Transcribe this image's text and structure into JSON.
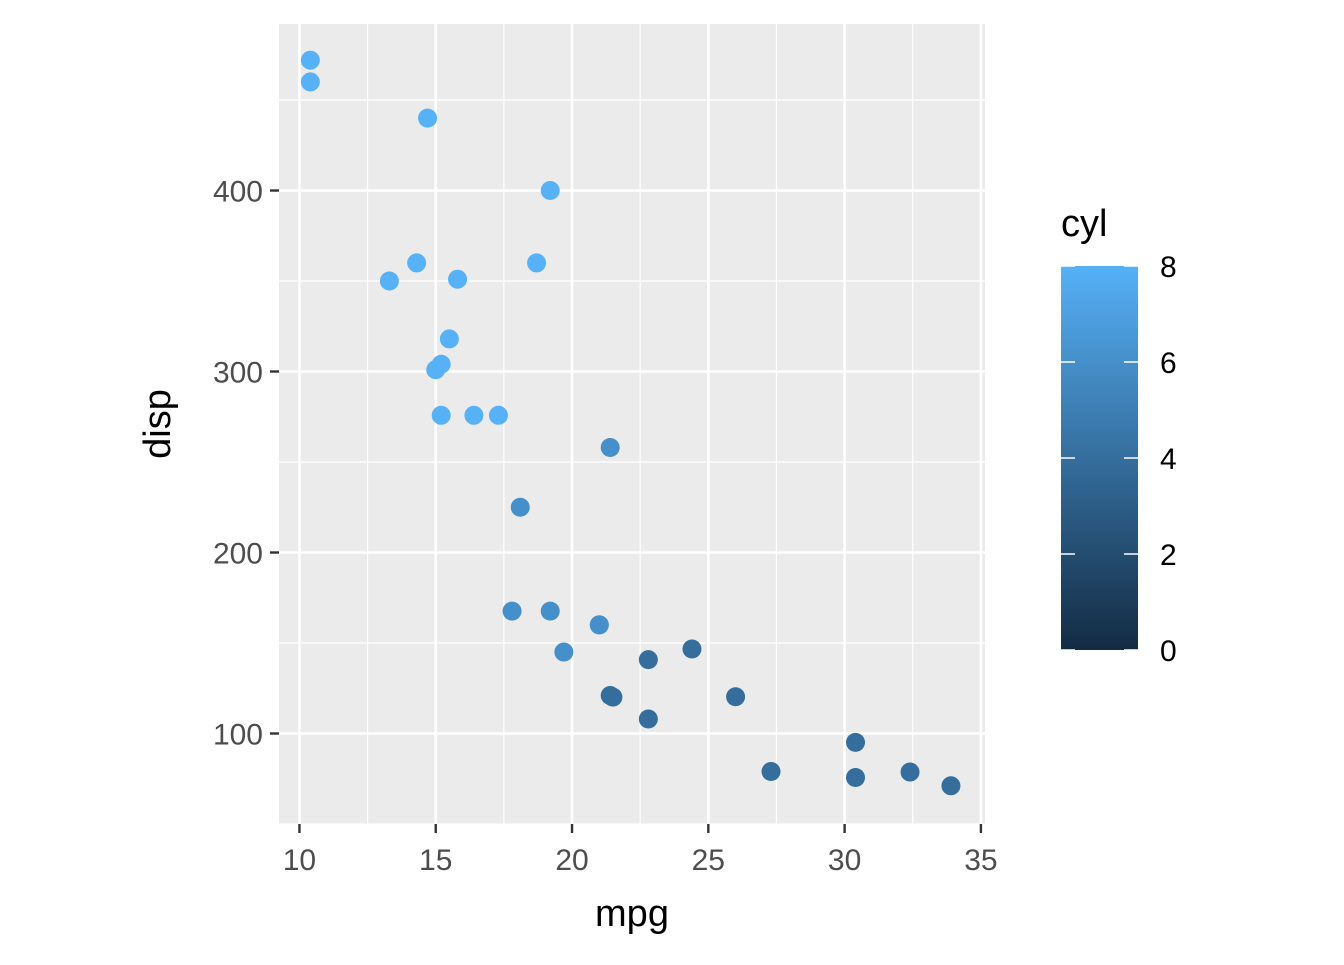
{
  "chart_data": {
    "type": "scatter",
    "title": "",
    "xlabel": "mpg",
    "ylabel": "disp",
    "xlim": [
      9.25,
      35.15
    ],
    "ylim": [
      50.0,
      492.0
    ],
    "x_ticks": [
      10,
      15,
      20,
      25,
      30,
      35
    ],
    "y_ticks": [
      100,
      200,
      300,
      400
    ],
    "grid": true,
    "legend": {
      "title": "cyl",
      "placement": "right",
      "type": "continuous",
      "range": [
        0,
        8
      ],
      "ticks": [
        0,
        2,
        4,
        6,
        8
      ],
      "colors": {
        "low": "#132B43",
        "high": "#56B1F7"
      }
    },
    "points": [
      {
        "x": 21.0,
        "y": 160.0,
        "cyl": 6
      },
      {
        "x": 21.0,
        "y": 160.0,
        "cyl": 6
      },
      {
        "x": 22.8,
        "y": 108.0,
        "cyl": 4
      },
      {
        "x": 21.4,
        "y": 258.0,
        "cyl": 6
      },
      {
        "x": 18.7,
        "y": 360.0,
        "cyl": 8
      },
      {
        "x": 18.1,
        "y": 225.0,
        "cyl": 6
      },
      {
        "x": 14.3,
        "y": 360.0,
        "cyl": 8
      },
      {
        "x": 24.4,
        "y": 146.7,
        "cyl": 4
      },
      {
        "x": 22.8,
        "y": 140.8,
        "cyl": 4
      },
      {
        "x": 19.2,
        "y": 167.6,
        "cyl": 6
      },
      {
        "x": 17.8,
        "y": 167.6,
        "cyl": 6
      },
      {
        "x": 16.4,
        "y": 275.8,
        "cyl": 8
      },
      {
        "x": 17.3,
        "y": 275.8,
        "cyl": 8
      },
      {
        "x": 15.2,
        "y": 275.8,
        "cyl": 8
      },
      {
        "x": 10.4,
        "y": 472.0,
        "cyl": 8
      },
      {
        "x": 10.4,
        "y": 460.0,
        "cyl": 8
      },
      {
        "x": 14.7,
        "y": 440.0,
        "cyl": 8
      },
      {
        "x": 32.4,
        "y": 78.7,
        "cyl": 4
      },
      {
        "x": 30.4,
        "y": 75.7,
        "cyl": 4
      },
      {
        "x": 33.9,
        "y": 71.1,
        "cyl": 4
      },
      {
        "x": 21.5,
        "y": 120.1,
        "cyl": 4
      },
      {
        "x": 15.5,
        "y": 318.0,
        "cyl": 8
      },
      {
        "x": 15.2,
        "y": 304.0,
        "cyl": 8
      },
      {
        "x": 13.3,
        "y": 350.0,
        "cyl": 8
      },
      {
        "x": 19.2,
        "y": 400.0,
        "cyl": 8
      },
      {
        "x": 27.3,
        "y": 79.0,
        "cyl": 4
      },
      {
        "x": 26.0,
        "y": 120.3,
        "cyl": 4
      },
      {
        "x": 30.4,
        "y": 95.1,
        "cyl": 4
      },
      {
        "x": 15.8,
        "y": 351.0,
        "cyl": 8
      },
      {
        "x": 19.7,
        "y": 145.0,
        "cyl": 6
      },
      {
        "x": 15.0,
        "y": 301.0,
        "cyl": 8
      },
      {
        "x": 21.4,
        "y": 121.0,
        "cyl": 4
      }
    ]
  }
}
